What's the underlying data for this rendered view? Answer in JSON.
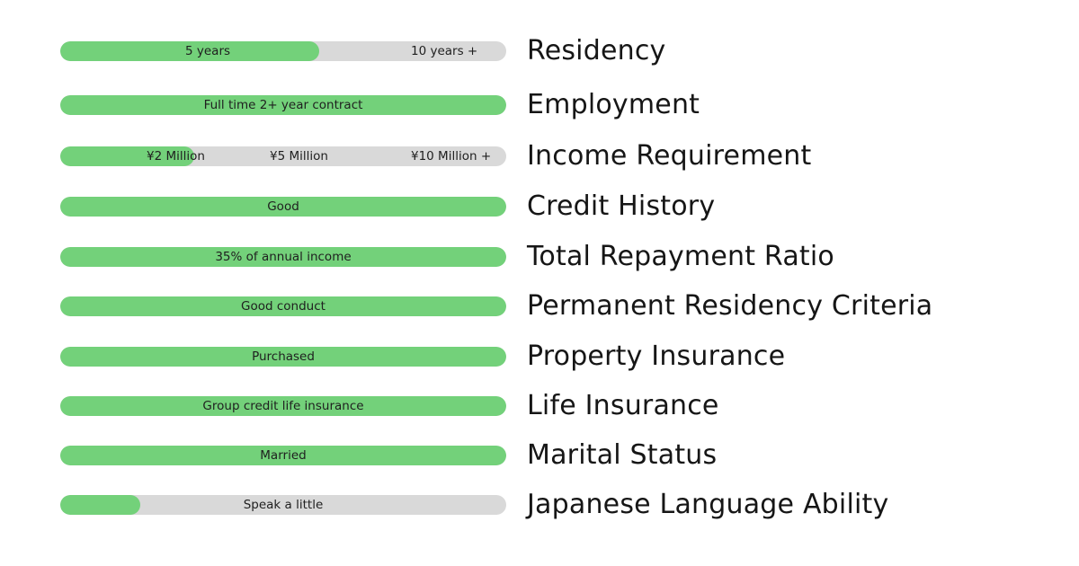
{
  "accent_color": "#73d17a",
  "track_color": "#d9d9d9",
  "rows": [
    {
      "title": "Residency",
      "fill": 0.58,
      "labels": [
        "5 years",
        "10 years +"
      ]
    },
    {
      "title": "Employment",
      "fill": 1.0,
      "labels": [
        "Full time 2+ year contract"
      ]
    },
    {
      "title": "Income Requirement",
      "fill": 0.3,
      "labels": [
        "¥2 Million",
        "¥5 Million",
        "¥10 Million +"
      ]
    },
    {
      "title": "Credit History",
      "fill": 1.0,
      "labels": [
        "Good"
      ]
    },
    {
      "title": "Total Repayment Ratio",
      "fill": 1.0,
      "labels": [
        "35% of annual income"
      ]
    },
    {
      "title": "Permanent Residency Criteria",
      "fill": 1.0,
      "labels": [
        "Good conduct"
      ]
    },
    {
      "title": "Property Insurance",
      "fill": 1.0,
      "labels": [
        "Purchased"
      ]
    },
    {
      "title": "Life Insurance",
      "fill": 1.0,
      "labels": [
        "Group credit life insurance"
      ]
    },
    {
      "title": "Marital Status",
      "fill": 1.0,
      "labels": [
        "Married"
      ]
    },
    {
      "title": "Japanese Language Ability",
      "fill": 0.18,
      "labels": [
        "Speak a little"
      ]
    }
  ]
}
